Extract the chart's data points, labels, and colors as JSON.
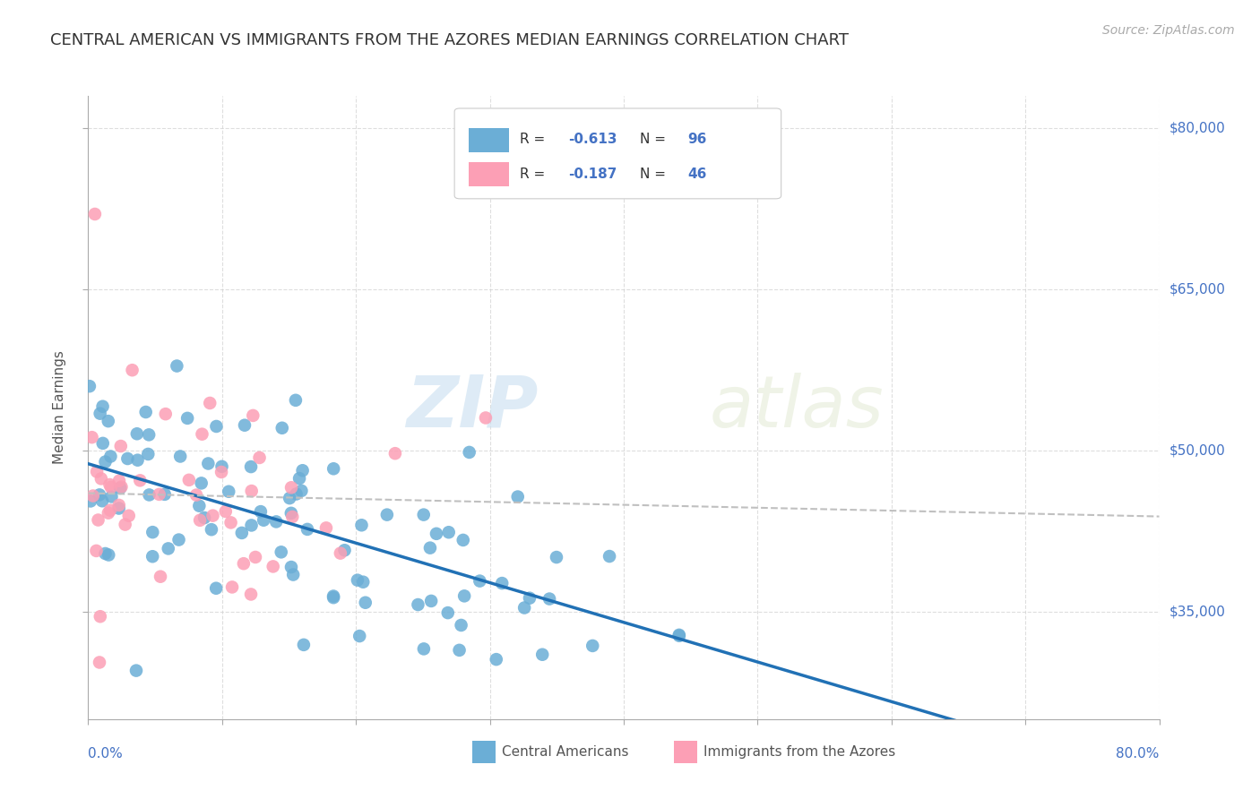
{
  "title": "CENTRAL AMERICAN VS IMMIGRANTS FROM THE AZORES MEDIAN EARNINGS CORRELATION CHART",
  "source": "Source: ZipAtlas.com",
  "ylabel": "Median Earnings",
  "watermark_zip": "ZIP",
  "watermark_atlas": "atlas",
  "legend1_r": "-0.613",
  "legend1_n": "96",
  "legend2_r": "-0.187",
  "legend2_n": "46",
  "blue_color": "#6baed6",
  "pink_color": "#fc9fb5",
  "blue_line_color": "#2171b5",
  "pink_line_color": "#c0c0c0",
  "title_color": "#333333",
  "axis_label_color": "#4472c4",
  "R_blue": -0.613,
  "R_pink": -0.187,
  "xlim": [
    0.0,
    0.8
  ],
  "ylim": [
    25000,
    83000
  ],
  "ytick_positions": [
    35000,
    50000,
    65000,
    80000
  ],
  "ytick_labels": [
    "$35,000",
    "$50,000",
    "$65,000",
    "$80,000"
  ]
}
